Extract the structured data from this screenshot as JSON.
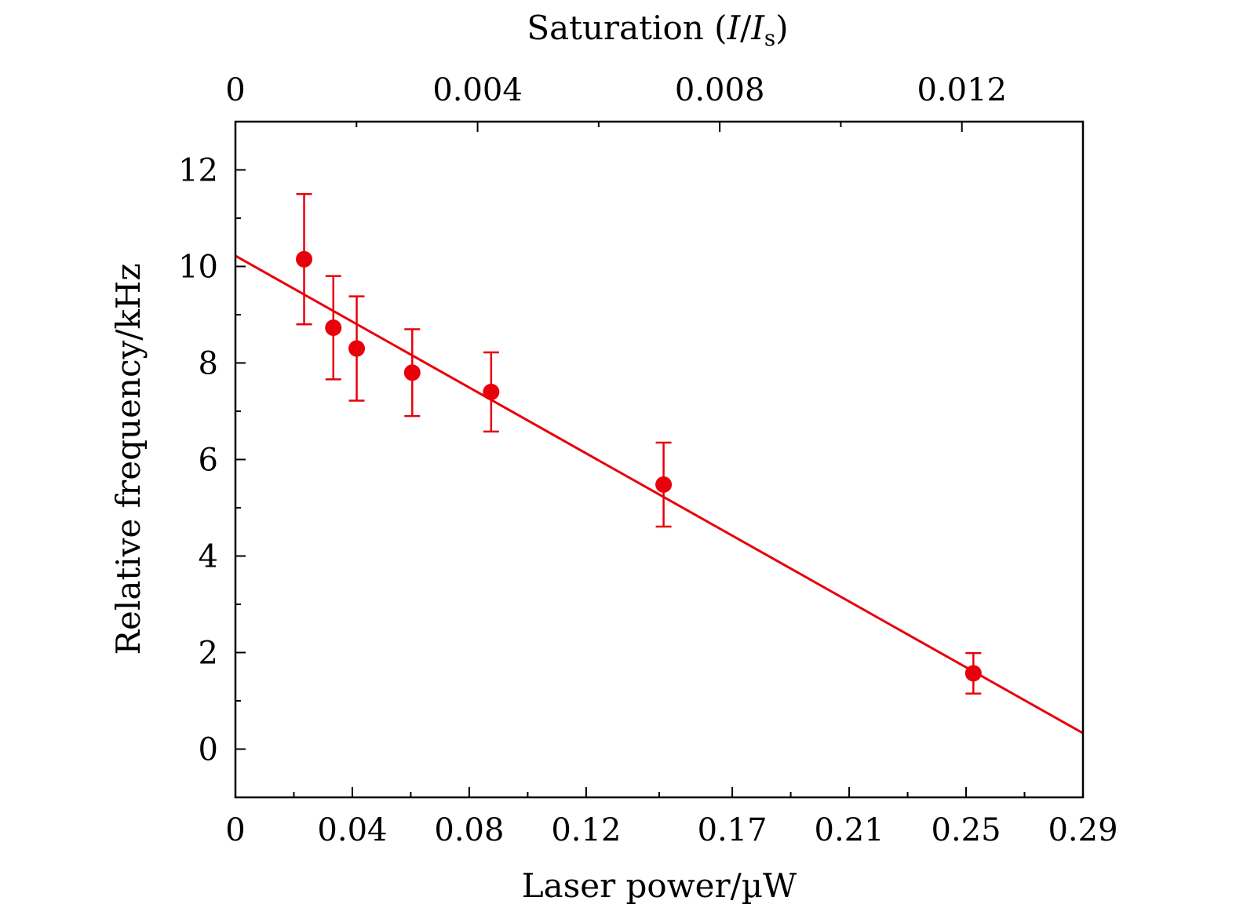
{
  "chart_data": {
    "type": "scatter",
    "xlabel": "Laser power/µW",
    "ylabel": "Relative frequency/kHz",
    "top_xlabel": "Saturation (I/I_s)",
    "top_xlabel_parts": {
      "prefix": "Saturation (",
      "var": "I",
      "slash": "/",
      "var2": "I",
      "sub": "s",
      "suffix": ")"
    },
    "xlim": [
      0,
      0.29
    ],
    "ylim": [
      -1,
      13
    ],
    "top_xlim": [
      0,
      0.014
    ],
    "x_tick_values": [
      0,
      0.04,
      0.08,
      0.12,
      0.17,
      0.21,
      0.25,
      0.29
    ],
    "x_tick_labels": [
      "0",
      "0.04",
      "0.08",
      "0.12",
      "0.17",
      "0.21",
      "0.25",
      "0.29"
    ],
    "y_tick_values": [
      0,
      2,
      4,
      6,
      8,
      10,
      12
    ],
    "y_tick_labels": [
      "0",
      "2",
      "4",
      "6",
      "8",
      "10",
      "12"
    ],
    "top_tick_values": [
      0,
      0.004,
      0.008,
      0.012
    ],
    "top_tick_labels": [
      "0",
      "0.004",
      "0.008",
      "0.012"
    ],
    "color": "#e8000b",
    "series": [
      {
        "x": [
          0.0235,
          0.0335,
          0.0415,
          0.0605,
          0.0875,
          0.1465,
          0.2525
        ],
        "y": [
          10.15,
          8.73,
          8.3,
          7.8,
          7.4,
          5.48,
          1.57
        ],
        "yerr": [
          1.35,
          1.07,
          1.08,
          0.9,
          0.82,
          0.87,
          0.42
        ]
      }
    ],
    "fit_line": {
      "x": [
        0,
        0.29
      ],
      "y": [
        10.22,
        0.33
      ]
    }
  }
}
